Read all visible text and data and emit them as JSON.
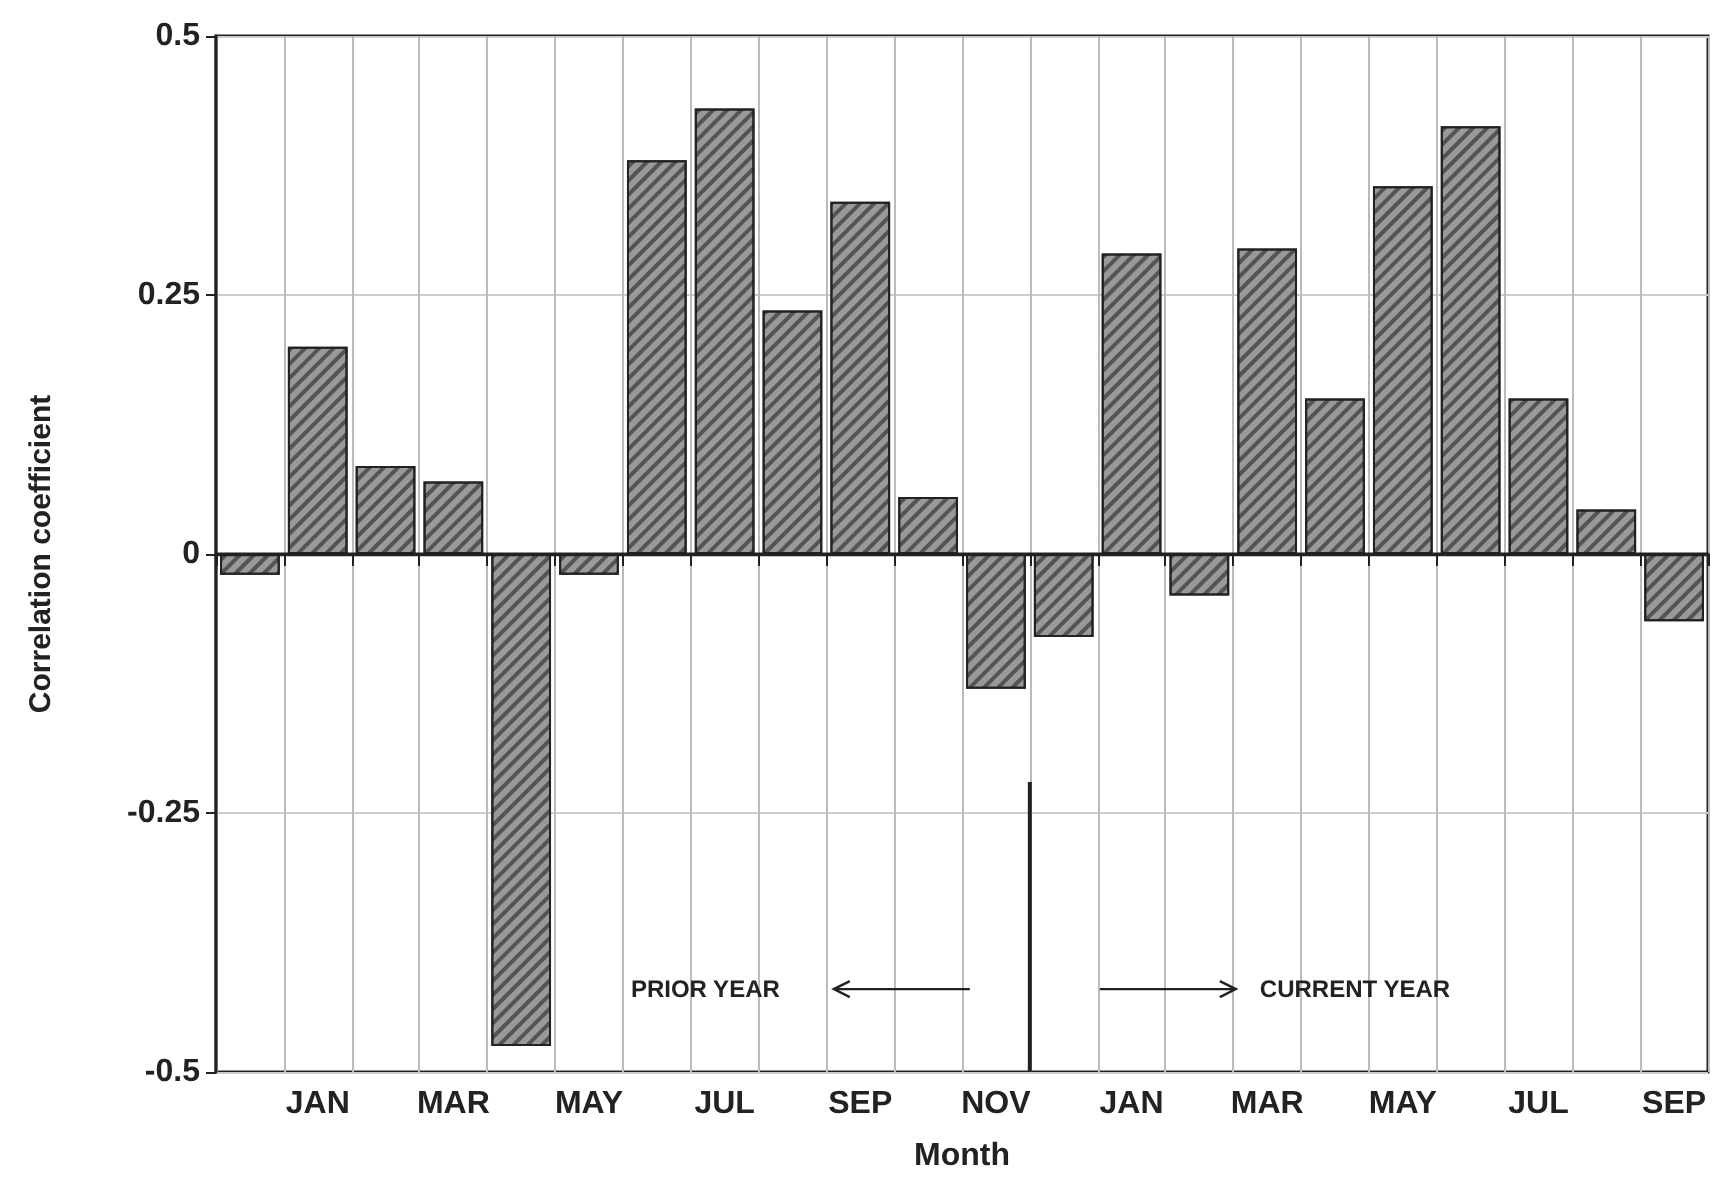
{
  "chart_data": {
    "type": "bar",
    "xlabel": "Month",
    "ylabel": "Correlation coefficient",
    "categories": [
      null,
      "JAN",
      null,
      "MAR",
      null,
      "MAY",
      null,
      "JUL",
      null,
      "SEP",
      null,
      "NOV",
      null,
      "JAN",
      null,
      "MAR",
      null,
      "MAY",
      null,
      "JUL",
      null,
      "SEP"
    ],
    "values": [
      -0.02,
      0.2,
      0.085,
      0.07,
      -0.475,
      -0.02,
      0.38,
      0.43,
      0.235,
      0.34,
      0.055,
      -0.13,
      -0.08,
      0.29,
      -0.04,
      0.295,
      0.15,
      0.355,
      0.413,
      0.15,
      0.043,
      -0.065
    ],
    "color": "#999999",
    "ylim": [
      -0.5,
      0.5
    ],
    "yticks": [
      -0.5,
      -0.25,
      0,
      0.25,
      0.5
    ],
    "grid": true,
    "ref_lines": [
      {
        "axis": "y",
        "value": 0
      }
    ],
    "annotations": [
      "PRIOR YEAR",
      "CURRENT YEAR"
    ]
  }
}
